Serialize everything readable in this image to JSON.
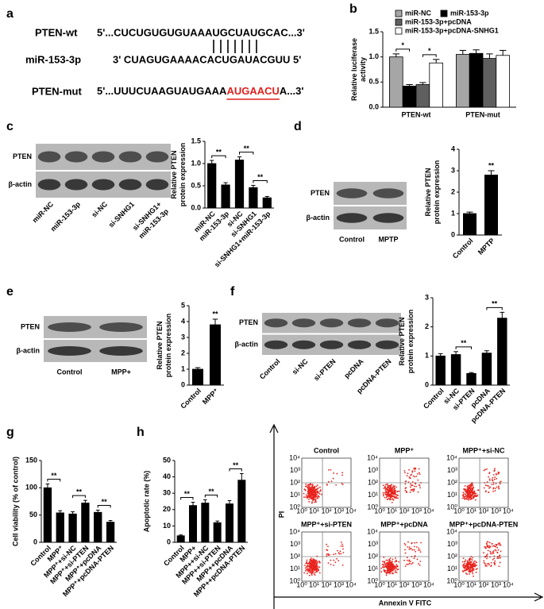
{
  "panel_labels": [
    "a",
    "b",
    "c",
    "d",
    "e",
    "f",
    "g",
    "h"
  ],
  "sequences": {
    "rows": [
      {
        "name": "PTEN-wt",
        "seq": "5'...CUCUGUGUGUAAAUGCUAUGCAC...3'"
      },
      {
        "name": "miR-153-3p",
        "seq": "3'  CUAGUGAAAACACUGAUACGUU 5'"
      },
      {
        "name": "PTEN-mut",
        "seq": "5'...UUUCUAAGUAUGAAA",
        "mutation": "AUGAACU",
        "tail": "A...3'"
      }
    ]
  },
  "blots": [
    {
      "rows": [
        "PTEN",
        "β-actin"
      ],
      "lanes": [
        "miR-NC",
        "miR-153-3p",
        "si-NC",
        "si-SNHG1",
        [
          "si-SNHG1+",
          "miR-153-3p"
        ]
      ]
    },
    {
      "rows": [
        "PTEN",
        "β-actin"
      ],
      "lanes": [
        "Control",
        "MPTP"
      ]
    },
    {
      "rows": [
        "PTEN",
        "β-actin"
      ],
      "lanes": [
        "Control",
        "MPP+"
      ]
    },
    {
      "rows": [
        "PTEN",
        "β-actin"
      ],
      "lanes": [
        "Control",
        "si-NC",
        "si-PTEN",
        "pcDNA",
        "pcDNA-PTEN"
      ]
    }
  ],
  "chart_data": [
    {
      "type": "bar",
      "y_label": [
        "Relative luciferase",
        "activity"
      ],
      "categories": [
        "PTEN-wt",
        "PTEN-mut"
      ],
      "series": [
        {
          "name": "miR-NC",
          "color": "#a6a6a6",
          "values": [
            1.0,
            1.05
          ],
          "errors": [
            0.06,
            0.08
          ]
        },
        {
          "name": "miR-153-3p",
          "color": "#000000",
          "values": [
            0.42,
            1.07
          ],
          "errors": [
            0.03,
            0.07
          ]
        },
        {
          "name": "miR-153-3p+pcDNA",
          "color": "#5f5f5f",
          "values": [
            0.45,
            0.97
          ],
          "errors": [
            0.04,
            0.09
          ]
        },
        {
          "name": "miR-153-3p+pcDNA-SNHG1",
          "color": "#ffffff",
          "values": [
            0.88,
            1.03
          ],
          "errors": [
            0.07,
            0.1
          ]
        }
      ],
      "ylim": [
        0,
        1.5
      ],
      "yticks": [
        {
          "value": 0,
          "label": "0.0"
        },
        0.5,
        {
          "value": 1,
          "label": "1.0"
        },
        1.5
      ],
      "annotations": [
        {
          "label": "*",
          "category": "PTEN-wt",
          "between": [
            "miR-NC",
            "miR-153-3p"
          ]
        },
        {
          "label": "*",
          "category": "PTEN-wt",
          "between": [
            "miR-153-3p+pcDNA",
            "miR-153-3p+pcDNA-SNHG1"
          ]
        }
      ]
    },
    {
      "type": "bar",
      "y_label": [
        "Relative PTEN",
        "protein expression"
      ],
      "color": "#000000",
      "categories": [
        "miR-NC",
        "miR-153-3p",
        "si-NC",
        "si-SNHG1",
        "si-SNHG1+miR-153-3p"
      ],
      "values": [
        1.0,
        0.52,
        1.08,
        0.46,
        0.23
      ],
      "errors": [
        0.07,
        0.05,
        0.07,
        0.05,
        0.03
      ],
      "ylim": [
        0,
        1.5
      ],
      "yticks": [
        {
          "value": 0,
          "label": "0.0"
        },
        0.5,
        {
          "value": 1,
          "label": "1.0"
        },
        1.5
      ],
      "annotations": [
        {
          "label": "**",
          "between": [
            "miR-NC",
            "miR-153-3p"
          ]
        },
        {
          "label": "**",
          "between": [
            "si-NC",
            "si-SNHG1"
          ]
        },
        {
          "label": "**",
          "between": [
            "si-SNHG1",
            "si-SNHG1+miR-153-3p"
          ]
        }
      ]
    },
    {
      "type": "bar",
      "y_label": [
        "Relative PTEN",
        "protein expression"
      ],
      "color": "#000000",
      "categories": [
        "Control",
        "MPTP"
      ],
      "values": [
        1.0,
        2.8
      ],
      "errors": [
        0.07,
        0.2
      ],
      "ylim": [
        0,
        4
      ],
      "yticks": [
        0,
        1,
        2,
        3,
        4
      ],
      "annotations": [
        {
          "label": "**",
          "over": "MPTP"
        }
      ]
    },
    {
      "type": "bar",
      "y_label": [
        "Relative PTEN",
        "protein expression"
      ],
      "color": "#000000",
      "categories": [
        "Control",
        "MPP⁺"
      ],
      "values": [
        1.0,
        3.8
      ],
      "errors": [
        0.1,
        0.35
      ],
      "ylim": [
        0,
        5
      ],
      "yticks": [
        0,
        1,
        2,
        3,
        4,
        5
      ],
      "annotations": [
        {
          "label": "**",
          "over": "MPP⁺"
        }
      ]
    },
    {
      "type": "bar",
      "y_label": [
        "Relative PTEN",
        "protein expression"
      ],
      "color": "#000000",
      "categories": [
        "Control",
        "si-NC",
        "si-PTEN",
        "pcDNA",
        "pcDNA-PTEN"
      ],
      "values": [
        1.0,
        1.05,
        0.4,
        1.1,
        2.3
      ],
      "errors": [
        0.08,
        0.1,
        0.03,
        0.08,
        0.2
      ],
      "ylim": [
        0,
        3
      ],
      "yticks": [
        0,
        1,
        2,
        3
      ],
      "annotations": [
        {
          "label": "**",
          "between": [
            "si-NC",
            "si-PTEN"
          ]
        },
        {
          "label": "**",
          "between": [
            "pcDNA",
            "pcDNA-PTEN"
          ]
        }
      ]
    },
    {
      "type": "bar",
      "y_label": [
        "Cell viability (% of control)"
      ],
      "color": "#000000",
      "categories": [
        "Control",
        "MPP⁺",
        "MPP⁺+si-NC",
        "MPP⁺+si-PTEN",
        "MPP⁺+pcDNA",
        "MPP⁺+pcDNA-PTEN"
      ],
      "values": [
        100,
        54,
        52,
        72,
        55,
        37
      ],
      "errors": [
        7,
        4,
        4,
        5,
        4,
        3
      ],
      "ylim": [
        0,
        150
      ],
      "yticks": [
        0,
        50,
        100,
        150
      ],
      "annotations": [
        {
          "label": "**",
          "between": [
            "Control",
            "MPP⁺"
          ]
        },
        {
          "label": "**",
          "between": [
            "MPP⁺+si-NC",
            "MPP⁺+si-PTEN"
          ]
        },
        {
          "label": "**",
          "between": [
            "MPP⁺+pcDNA",
            "MPP⁺+pcDNA-PTEN"
          ]
        }
      ]
    },
    {
      "type": "bar",
      "y_label": [
        "Apoptotic rate (%)"
      ],
      "color": "#000000",
      "categories": [
        "Control",
        "MPP+",
        "MPP++si-NC",
        "MPP++si-PTEN",
        "MPP++pcDNA",
        "MPP++pcDNA-PTEN"
      ],
      "values": [
        4,
        22.5,
        24,
        12,
        23.5,
        38
      ],
      "errors": [
        0.5,
        2,
        2,
        1,
        2,
        4
      ],
      "ylim": [
        0,
        50
      ],
      "yticks": [
        0,
        10,
        20,
        30,
        40,
        50
      ],
      "annotations": [
        {
          "label": "**",
          "between": [
            "Control",
            "MPP+"
          ]
        },
        {
          "label": "**",
          "between": [
            "MPP++si-NC",
            "MPP++si-PTEN"
          ]
        },
        {
          "label": "**",
          "between": [
            "MPP++pcDNA",
            "MPP++pcDNA-PTEN"
          ]
        }
      ]
    }
  ],
  "flow": {
    "plots": [
      "Control",
      "MPP⁺",
      "MPP⁺+si-NC",
      "MPP⁺+si-PTEN",
      "MPP⁺+pcDNA",
      "MPP⁺+pcDNA-PTEN"
    ],
    "y_label": "PI",
    "x_label": "Annexin V FITC",
    "ticks": [
      "10⁰",
      "10¹",
      "10²",
      "10³",
      "10⁴"
    ]
  }
}
